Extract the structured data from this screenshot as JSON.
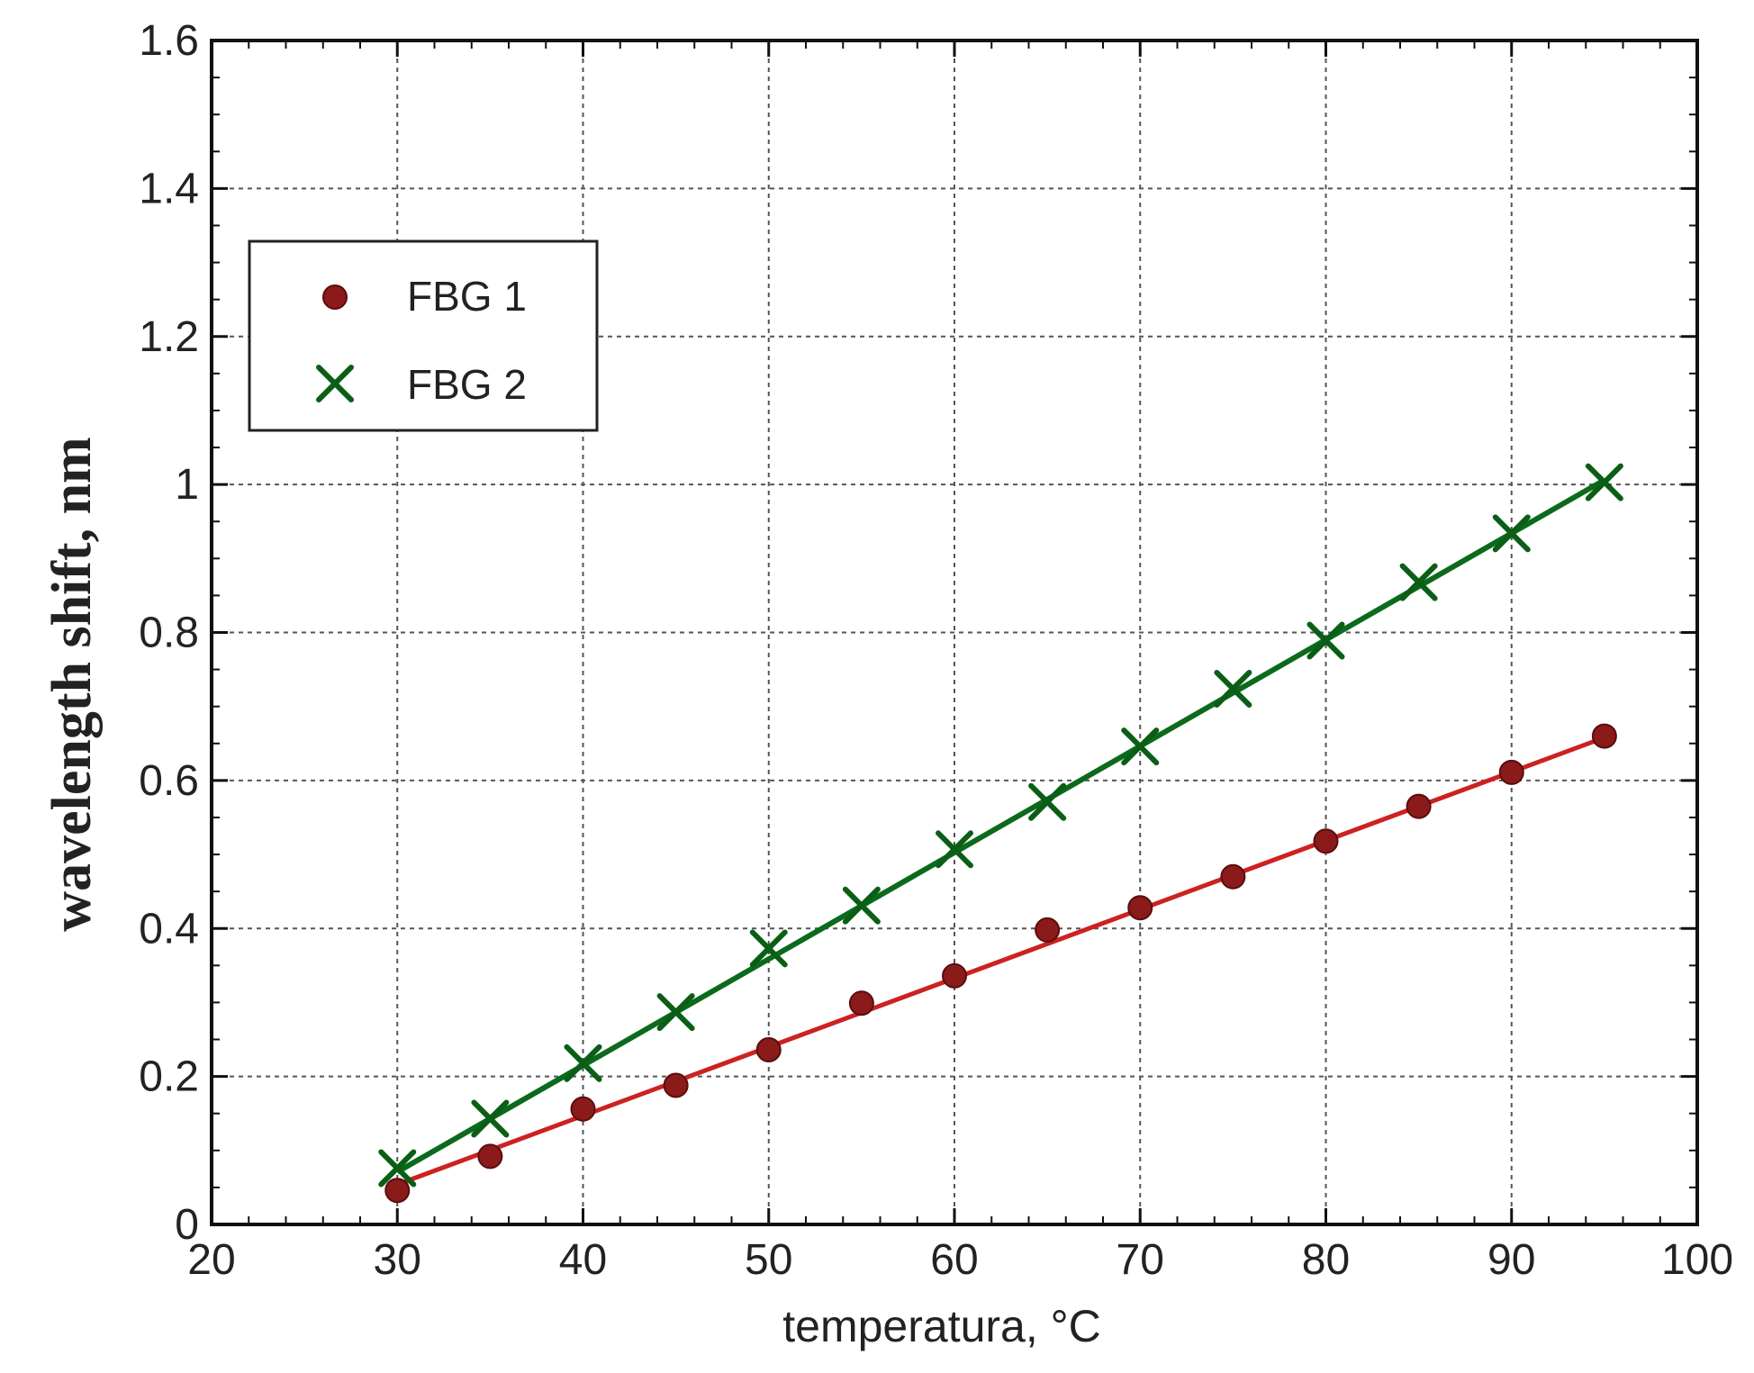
{
  "colors": {
    "fbg1": "#8b1a1a",
    "fbg1_line": "#cc2222",
    "fbg2": "#0b5e16",
    "fbg2_line": "#0b6a1c",
    "grid": "#555555",
    "axis": "#111111"
  },
  "chart_data": {
    "type": "scatter",
    "title": "",
    "xlabel": "temperatura, °C",
    "ylabel": "wavelength shift, nm",
    "xlim": [
      20,
      100
    ],
    "ylim": [
      0,
      1.6
    ],
    "xticks": [
      20,
      30,
      40,
      50,
      60,
      70,
      80,
      90,
      100
    ],
    "xtick_labels": [
      "20",
      "30",
      "40",
      "50",
      "60",
      "70",
      "80",
      "90",
      "100"
    ],
    "yticks": [
      0,
      0.2,
      0.4,
      0.6,
      0.8,
      1,
      1.2,
      1.4,
      1.6
    ],
    "ytick_labels": [
      "0",
      "0.2",
      "0.4",
      "0.6",
      "0.8",
      "1",
      "1.2",
      "1.4",
      "1.6"
    ],
    "grid": true,
    "legend_position": "upper-left",
    "series": [
      {
        "name": "FBG 1",
        "marker": "circle",
        "x": [
          30,
          35,
          40,
          45,
          50,
          55,
          60,
          65,
          70,
          75,
          80,
          85,
          90,
          95
        ],
        "y": [
          0.046,
          0.092,
          0.156,
          0.188,
          0.236,
          0.299,
          0.336,
          0.398,
          0.428,
          0.47,
          0.518,
          0.565,
          0.611,
          0.66
        ],
        "fit": {
          "x": [
            30,
            95
          ],
          "y": [
            0.054,
            0.658
          ]
        }
      },
      {
        "name": "FBG 2",
        "marker": "x",
        "x": [
          30,
          35,
          40,
          45,
          50,
          55,
          60,
          65,
          70,
          75,
          80,
          85,
          90,
          95
        ],
        "y": [
          0.076,
          0.143,
          0.218,
          0.287,
          0.373,
          0.431,
          0.507,
          0.571,
          0.646,
          0.724,
          0.789,
          0.868,
          0.934,
          1.003
        ],
        "fit": {
          "x": [
            30,
            95
          ],
          "y": [
            0.071,
            1.006
          ]
        }
      }
    ]
  }
}
